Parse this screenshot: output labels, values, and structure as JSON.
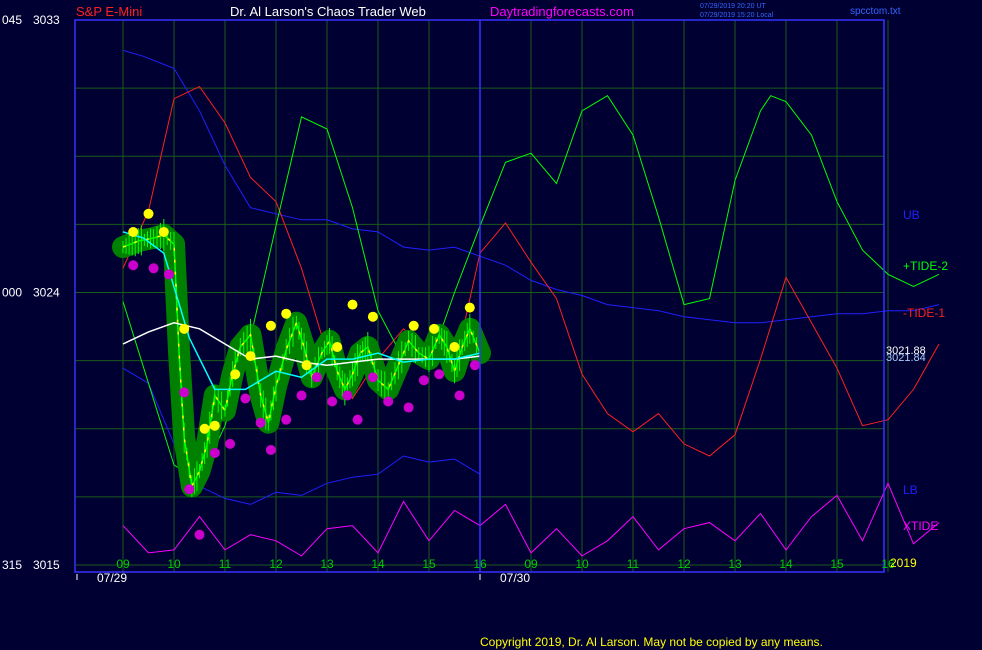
{
  "header": {
    "instrument": "S&P E-Mini",
    "author": "Dr. Al Larson's Chaos Trader Web",
    "site": "Daytradingforecasts.com",
    "timestamp_ut": "07/29/2019 20:20 UT",
    "timestamp_local": "07/29/2019 15:20 Local",
    "filename": "spcctom.txt"
  },
  "footer": {
    "copyright": "Copyright 2019, Dr. Al Larson. May not be copied by any means."
  },
  "colors": {
    "background": "#000033",
    "grid": "#1a5a1a",
    "frame": "#3333ff",
    "ub": "#2020ff",
    "lb": "#2020ff",
    "tide2": "#00ff00",
    "tide1": "#ff2020",
    "xtide": "#ff00ff",
    "white": "#ffffff",
    "cyan": "#00ffff",
    "yellow": "#ffff00",
    "price": "#00ff00",
    "halo": "#008000",
    "label_blue": "#3366ff"
  },
  "chart_data": {
    "type": "line",
    "y_axis": {
      "ticks": [
        {
          "value": 3033,
          "left_label": "045",
          "label": "3033"
        },
        {
          "value": 3024,
          "left_label": "000",
          "label": "3024"
        },
        {
          "value": 3015,
          "left_label": "315",
          "label": "3015"
        }
      ],
      "ylim": [
        3015,
        3033
      ]
    },
    "x_axis": {
      "hour_labels": [
        "09",
        "10",
        "11",
        "12",
        "13",
        "14",
        "15",
        "16",
        "09",
        "10",
        "11",
        "12",
        "13",
        "14",
        "15",
        "16"
      ],
      "date_labels": [
        "07/29",
        "07/30"
      ],
      "year_label": "2019"
    },
    "legend": [
      {
        "name": "UB",
        "color": "#2020ff"
      },
      {
        "name": "+TIDE-2",
        "color": "#00ff00"
      },
      {
        "name": "-TIDE-1",
        "color": "#ff2020"
      },
      {
        "name": "LB",
        "color": "#2020ff"
      },
      {
        "name": "XTIDE",
        "color": "#ff00ff"
      }
    ],
    "value_labels": [
      "3021.88",
      "3021.84"
    ],
    "series": [
      {
        "name": "UB",
        "x": [
          0,
          0.4,
          1,
          1.5,
          2,
          2.5,
          3,
          3.5,
          4,
          4.5,
          5,
          5.5,
          6,
          6.5,
          7,
          7.5,
          8,
          8.5,
          9,
          9.5,
          10,
          10.5,
          11,
          11.5,
          12,
          12.5,
          13,
          13.5,
          14,
          14.5,
          15,
          15.5,
          16
        ],
        "values": [
          3032.0,
          3031.8,
          3031.4,
          3030.0,
          3028.2,
          3026.8,
          3026.6,
          3026.4,
          3026.4,
          3026.1,
          3026.0,
          3025.5,
          3025.4,
          3025.5,
          3025.2,
          3024.9,
          3024.4,
          3024.1,
          3023.9,
          3023.6,
          3023.5,
          3023.4,
          3023.2,
          3023.1,
          3023.0,
          3023.0,
          3023.1,
          3023.2,
          3023.3,
          3023.3,
          3023.4,
          3023.4,
          3023.6
        ]
      },
      {
        "name": "LB",
        "x": [
          0,
          0.5,
          1,
          1.5,
          2,
          2.5,
          3,
          3.5,
          4,
          4.5,
          5,
          5.5,
          6,
          6.5,
          7
        ],
        "values": [
          3021.5,
          3021.0,
          3019.0,
          3017.6,
          3017.2,
          3017.0,
          3017.4,
          3017.3,
          3017.7,
          3017.9,
          3018.0,
          3018.6,
          3018.4,
          3018.5,
          3018.0
        ]
      },
      {
        "name": "+TIDE-2",
        "x": [
          0,
          0.5,
          1,
          1.5,
          2,
          2.5,
          3,
          3.5,
          4,
          4.5,
          5,
          5.5,
          6,
          6.5,
          7,
          7.5,
          8,
          8.5,
          9,
          9.5,
          10,
          10.5,
          11,
          11.5,
          12,
          12.5,
          12.7,
          13,
          13.5,
          14,
          14.5,
          15,
          15.5,
          16
        ],
        "values": [
          3023.7,
          3021.0,
          3018.3,
          3017.8,
          3019.6,
          3022.5,
          3026.2,
          3029.8,
          3029.4,
          3026.8,
          3023.4,
          3021.8,
          3021.6,
          3024.0,
          3026.2,
          3028.3,
          3028.6,
          3027.6,
          3030.0,
          3030.5,
          3029.2,
          3026.5,
          3023.6,
          3023.8,
          3027.7,
          3030.0,
          3030.5,
          3030.3,
          3029.2,
          3027.0,
          3025.4,
          3024.6,
          3024.2,
          3024.6
        ]
      },
      {
        "name": "-TIDE-1",
        "x": [
          0,
          0.5,
          1,
          1.5,
          2,
          2.5,
          3,
          3.5,
          4,
          4.5,
          5,
          5.5,
          6,
          6.5,
          7,
          7.5,
          8,
          8.5,
          9,
          9.5,
          10,
          10.5,
          11,
          11.5,
          12,
          12.5,
          13,
          13.5,
          14,
          14.5,
          15,
          15.5,
          16
        ],
        "values": [
          3024.8,
          3026.7,
          3030.4,
          3030.8,
          3029.6,
          3027.8,
          3027.0,
          3024.8,
          3022.0,
          3020.5,
          3021.8,
          3022.8,
          3022.0,
          3021.5,
          3025.3,
          3026.3,
          3025.0,
          3023.8,
          3021.3,
          3020.0,
          3019.4,
          3020.0,
          3019.0,
          3018.6,
          3019.3,
          3021.8,
          3024.5,
          3023.0,
          3021.5,
          3019.6,
          3019.8,
          3020.8,
          3022.3
        ]
      },
      {
        "name": "XTIDE",
        "x": [
          0,
          0.5,
          1,
          1.5,
          2,
          2.5,
          3,
          3.5,
          4,
          4.5,
          5,
          5.5,
          6,
          6.5,
          7,
          7.5,
          8,
          8.5,
          9,
          9.5,
          10,
          10.5,
          11,
          11.5,
          12,
          12.5,
          13,
          13.5,
          14,
          14.5,
          15,
          15.5,
          16
        ],
        "values": [
          3016.3,
          3015.4,
          3015.5,
          3016.6,
          3015.5,
          3016.0,
          3015.8,
          3015.3,
          3016.2,
          3016.3,
          3015.4,
          3017.1,
          3015.8,
          3016.8,
          3016.3,
          3017.0,
          3015.4,
          3016.2,
          3015.3,
          3015.8,
          3016.6,
          3015.5,
          3016.2,
          3016.4,
          3015.8,
          3016.7,
          3015.5,
          3016.6,
          3017.3,
          3015.8,
          3017.7,
          3015.7,
          3016.4
        ]
      },
      {
        "name": "white average",
        "x": [
          0,
          0.5,
          1,
          1.5,
          2,
          2.5,
          3,
          3.5,
          4,
          4.5,
          5,
          5.5,
          6,
          6.5,
          7
        ],
        "values": [
          3022.3,
          3022.7,
          3023.0,
          3022.8,
          3022.3,
          3021.8,
          3021.9,
          3021.7,
          3021.6,
          3021.7,
          3021.8,
          3021.8,
          3021.8,
          3021.8,
          3021.9
        ]
      },
      {
        "name": "cyan average",
        "x": [
          0,
          0.4,
          0.8,
          1.3,
          1.8,
          2.4,
          3,
          3.5,
          4,
          4.5,
          5,
          5.5,
          6,
          6.5,
          7
        ],
        "values": [
          3026.0,
          3025.8,
          3025.3,
          3022.5,
          3020.8,
          3020.8,
          3021.4,
          3021.2,
          3021.8,
          3021.8,
          3022.0,
          3021.7,
          3021.8,
          3021.8,
          3022.0
        ]
      },
      {
        "name": "price",
        "x": [
          0,
          0.3,
          0.6,
          0.8,
          1,
          1.1,
          1.2,
          1.35,
          1.5,
          1.65,
          1.8,
          2,
          2.15,
          2.3,
          2.5,
          2.7,
          2.85,
          3,
          3.2,
          3.4,
          3.55,
          3.7,
          3.9,
          4.05,
          4.2,
          4.35,
          4.5,
          4.65,
          4.8,
          5,
          5.2,
          5.4,
          5.6,
          5.8,
          6,
          6.2,
          6.35,
          6.5,
          6.65,
          6.8,
          7
        ],
        "values": [
          3025.5,
          3025.7,
          3025.8,
          3025.9,
          3025.6,
          3022.0,
          3019.2,
          3017.6,
          3018.1,
          3019.0,
          3020.6,
          3020.1,
          3021.3,
          3022.2,
          3022.6,
          3020.6,
          3019.7,
          3020.9,
          3022.1,
          3023.0,
          3022.2,
          3021.2,
          3022.0,
          3022.4,
          3021.4,
          3020.8,
          3021.3,
          3022.0,
          3022.2,
          3021.1,
          3020.8,
          3021.6,
          3022.4,
          3022.0,
          3021.8,
          3022.6,
          3022.2,
          3021.4,
          3022.2,
          3022.8,
          3022.0
        ]
      }
    ],
    "markers": {
      "yellow": [
        [
          0.2,
          3026.0
        ],
        [
          0.5,
          3026.6
        ],
        [
          0.8,
          3026.0
        ],
        [
          1.2,
          3022.8
        ],
        [
          1.6,
          3019.5
        ],
        [
          1.8,
          3019.6
        ],
        [
          2.2,
          3021.3
        ],
        [
          2.5,
          3021.9
        ],
        [
          2.9,
          3022.9
        ],
        [
          3.2,
          3023.3
        ],
        [
          3.6,
          3021.6
        ],
        [
          4.2,
          3022.2
        ],
        [
          4.5,
          3023.6
        ],
        [
          4.9,
          3023.2
        ],
        [
          5.7,
          3022.9
        ],
        [
          6.1,
          3022.8
        ],
        [
          6.5,
          3022.2
        ],
        [
          6.8,
          3023.5
        ]
      ],
      "magenta": [
        [
          0.2,
          3024.9
        ],
        [
          0.6,
          3024.8
        ],
        [
          0.9,
          3024.6
        ],
        [
          1.2,
          3020.7
        ],
        [
          1.3,
          3017.5
        ],
        [
          1.5,
          3016.0
        ],
        [
          1.8,
          3018.7
        ],
        [
          2.1,
          3019.0
        ],
        [
          2.4,
          3020.5
        ],
        [
          2.7,
          3019.7
        ],
        [
          2.9,
          3018.8
        ],
        [
          3.2,
          3019.8
        ],
        [
          3.5,
          3020.6
        ],
        [
          3.8,
          3021.2
        ],
        [
          4.1,
          3020.4
        ],
        [
          4.4,
          3020.6
        ],
        [
          4.6,
          3019.8
        ],
        [
          4.9,
          3021.2
        ],
        [
          5.2,
          3020.4
        ],
        [
          5.6,
          3020.2
        ],
        [
          5.9,
          3021.1
        ],
        [
          6.2,
          3021.3
        ],
        [
          6.6,
          3020.6
        ],
        [
          6.9,
          3021.6
        ]
      ]
    }
  }
}
